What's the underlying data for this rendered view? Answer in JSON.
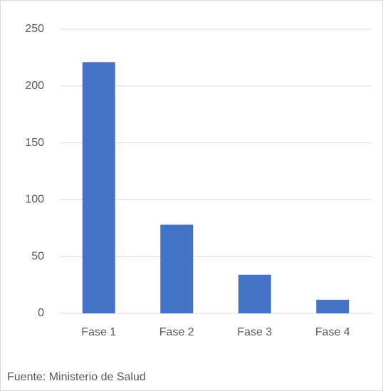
{
  "chart_data": {
    "type": "bar",
    "source": "Fuente: Ministerio de Salud",
    "categories": [
      "Fase 1",
      "Fase 2",
      "Fase 3",
      "Fase 4"
    ],
    "values": [
      221,
      78,
      34,
      12
    ],
    "color": "#4472c4",
    "ylim": [
      0,
      250
    ],
    "yticks": [
      0,
      50,
      100,
      150,
      200,
      250
    ],
    "grid": true
  }
}
